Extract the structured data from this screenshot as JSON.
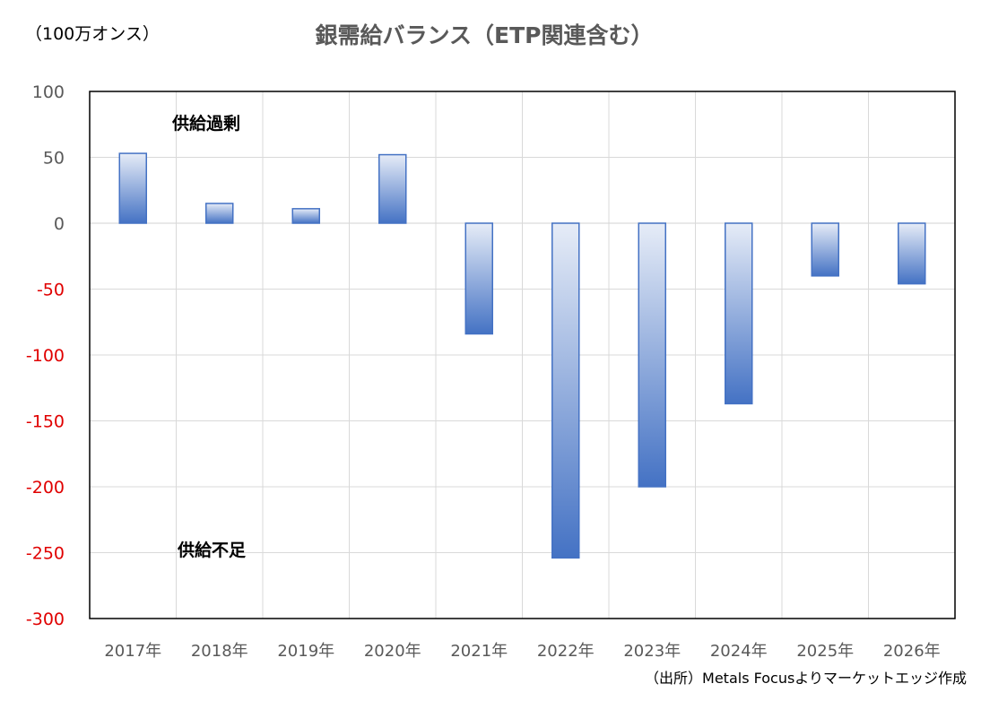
{
  "chart_data": {
    "type": "bar",
    "title": "銀需給バランス（ETP関連含む）",
    "unit_label": "（100万オンス）",
    "categories": [
      "2017年",
      "2018年",
      "2019年",
      "2020年",
      "2021年",
      "2022年",
      "2023年",
      "2024年",
      "2025年",
      "2026年"
    ],
    "values": [
      53,
      15,
      11,
      52,
      -84,
      -254,
      -200,
      -137,
      -40,
      -46
    ],
    "ylim": [
      -300,
      100
    ],
    "yticks": [
      "100",
      "50",
      "0",
      "-50",
      "-100",
      "-150",
      "-200",
      "-250",
      "-300"
    ],
    "ytick_values": [
      100,
      50,
      0,
      -50,
      -100,
      -150,
      -200,
      -250,
      -300
    ],
    "negative_tick_color": "#e00000",
    "positive_tick_color": "#595959",
    "bar_colors": {
      "light": "#e6ecf7",
      "dark": "#4472c4"
    },
    "grid": true,
    "annotations": {
      "surplus": "供給過剰",
      "deficit": "供給不足"
    },
    "source": "（出所）Metals Focusよりマーケットエッジ作成"
  }
}
